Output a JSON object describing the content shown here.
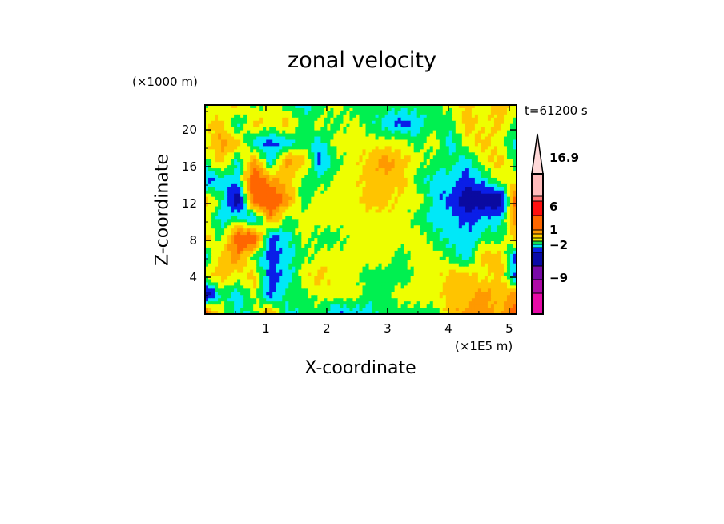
{
  "chart_data": {
    "type": "heatmap",
    "title": "zonal velocity",
    "xlabel": "X-coordinate",
    "ylabel": "Z-coordinate",
    "x_unit": "(×1E5 m)",
    "y_unit": "(×1000 m)",
    "time_label": "t=61200 s",
    "xlim": [
      0,
      5.12
    ],
    "ylim": [
      0,
      22.7
    ],
    "xticks": [
      "1",
      "2",
      "3",
      "4",
      "5"
    ],
    "xtick_values": [
      1,
      2,
      3,
      4,
      5
    ],
    "yticks": [
      "4",
      "8",
      "12",
      "16",
      "20"
    ],
    "ytick_values": [
      4,
      8,
      12,
      16,
      20
    ],
    "note": "values grid: rows from top (z high) to bottom, columns from x=0 to x=5.12; approximate velocity",
    "values": [
      "GYOGYGCGYGGGGGGYOYOY",
      "YOCOYOGYGYGCBCGGOYOG",
      "YROCBCGCYYYYYGYCYOYC",
      "GOCRCROBGYOROYGGCYOG",
      "BCCDROGGYYOOOGCCBCYY",
      "OGNDDRGYYYOOYYCBNNND",
      "YCGBRGYYYYYYYGCCBCCR",
      "OGDDBCYGGYYYYYGCCGGO",
      "CORGBCGYYYYYGYYGCOOB",
      "YOYOBCYOYYGGGYYOOYOB",
      "NGCYBGGYYYGGYYYOORОR",
      "DYCGRCGGBCCGGGGORROD"
    ],
    "codes": {
      "N": -5,
      "B": -2.5,
      "C": -1.5,
      "G": -0.5,
      "Y": 0.5,
      "O": 1.5,
      "R": 2.5,
      "D": 4.5
    },
    "colorbar": {
      "labels": [
        "16.9",
        "6",
        "1",
        "−2",
        "−9"
      ],
      "colors_bottom_to_top": [
        "#e80aa8",
        "#b00aa8",
        "#7a0aa8",
        "#0a0aa8",
        "#0a22e8",
        "#00e8f0",
        "#10e050",
        "#e8f000",
        "#ffcc00",
        "#ff9900",
        "#ff6600",
        "#ff1010",
        "#ff7777",
        "#ffbbbb"
      ],
      "extend_color": "#ffd8d8"
    }
  }
}
